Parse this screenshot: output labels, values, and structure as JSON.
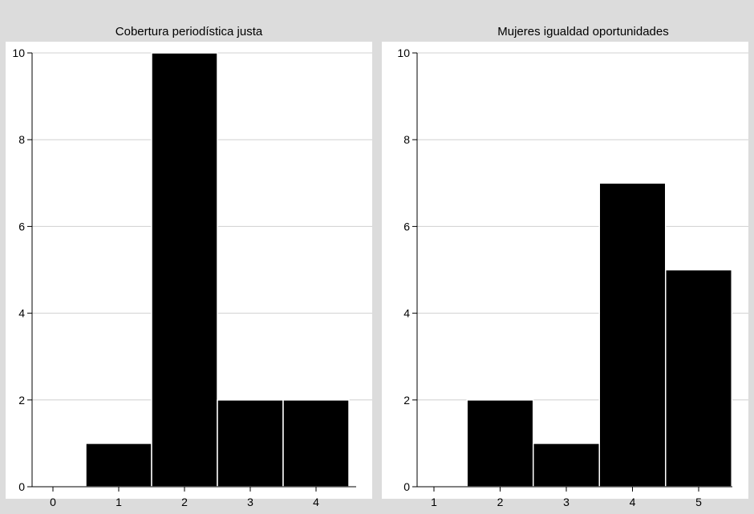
{
  "chart_data": [
    {
      "type": "bar",
      "title": "Cobertura periodística justa",
      "xlabel": "",
      "ylabel": "",
      "categories": [
        "1",
        "2",
        "3",
        "4"
      ],
      "x": [
        1,
        2,
        3,
        4
      ],
      "values": [
        1,
        10,
        2,
        2
      ],
      "xlim": [
        0,
        4.5
      ],
      "ylim": [
        0,
        10
      ],
      "xticks": [
        0,
        1,
        2,
        3,
        4
      ],
      "yticks": [
        0,
        2,
        4,
        6,
        8,
        10
      ],
      "grid": true,
      "bar_color": "#000000"
    },
    {
      "type": "bar",
      "title": "Mujeres igualdad oportunidades",
      "xlabel": "",
      "ylabel": "",
      "categories": [
        "2",
        "3",
        "4",
        "5"
      ],
      "x": [
        2,
        3,
        4,
        5
      ],
      "values": [
        2,
        1,
        7,
        5
      ],
      "xlim": [
        1,
        5.5
      ],
      "ylim": [
        0,
        10
      ],
      "xticks": [
        1,
        2,
        3,
        4,
        5
      ],
      "yticks": [
        0,
        2,
        4,
        6,
        8,
        10
      ],
      "grid": true,
      "bar_color": "#000000"
    }
  ],
  "colors": {
    "background": "#dcdcdc",
    "plot_background": "#ffffff",
    "gridline": "#d0d0d0",
    "bar": "#000000",
    "bar_edge": "#ffffff",
    "text": "#000000"
  }
}
